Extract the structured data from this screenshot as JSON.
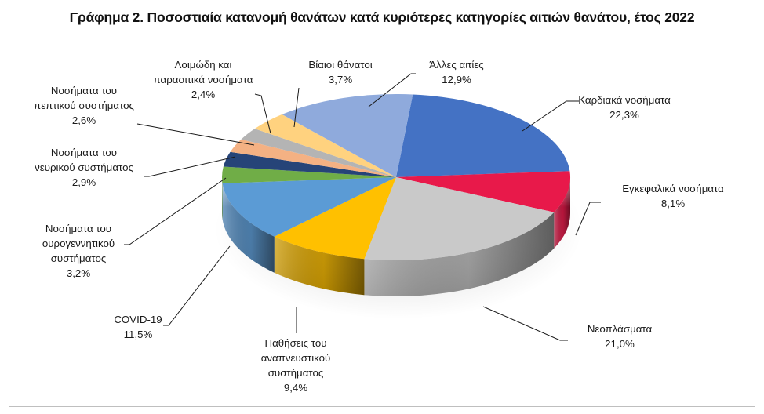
{
  "title": "Γράφημα 2. Ποσοστιαία κατανομή θανάτων κατά κυριότερες κατηγορίες αιτιών θανάτου, έτος 2022",
  "chart_data": {
    "type": "pie",
    "style": "3d-exploded-none",
    "title": "Γράφημα 2. Ποσοστιαία κατανομή θανάτων κατά κυριότερες κατηγορίες αιτιών θανάτου, έτος 2022",
    "unit": "%",
    "legend": "none (data labels with leader lines)",
    "slices": [
      {
        "label": "Καρδιακά νοσήματα",
        "value": 22.3,
        "display": "22,3%",
        "color": "#4472c4"
      },
      {
        "label": "Εγκεφαλικά νοσήματα",
        "value": 8.1,
        "display": "8,1%",
        "color": "#e8194a"
      },
      {
        "label": "Νεοπλάσματα",
        "value": 21.0,
        "display": "21,0%",
        "color": "#c9c9c9"
      },
      {
        "label": "Παθήσεις του αναπνευστικού συστήματος",
        "value": 9.4,
        "display": "9,4%",
        "color": "#ffc000"
      },
      {
        "label": "COVID-19",
        "value": 11.5,
        "display": "11,5%",
        "color": "#5b9bd5"
      },
      {
        "label": "Νοσήματα του ουρογεννητικού συστήματος",
        "value": 3.2,
        "display": "3,2%",
        "color": "#70ad47"
      },
      {
        "label": "Νοσήματα του νευρικού συστήματος",
        "value": 2.9,
        "display": "2,9%",
        "color": "#264478"
      },
      {
        "label": "Νοσήματα του πεπτικού συστήματος",
        "value": 2.6,
        "display": "2,6%",
        "color": "#f4b183"
      },
      {
        "label": "Λοιμώδη και παρασιτικά νοσήματα",
        "value": 2.4,
        "display": "2,4%",
        "color": "#b4b4b4"
      },
      {
        "label": "Βίαιοι θάνατοι",
        "value": 3.7,
        "display": "3,7%",
        "color": "#ffd27f"
      },
      {
        "label": "Άλλες αιτίες",
        "value": 12.9,
        "display": "12,9%",
        "color": "#8faadc"
      }
    ]
  },
  "labels": [
    {
      "key": "kardiaka",
      "lines": [
        "Καρδιακά νοσήματα",
        "22,3%"
      ]
    },
    {
      "key": "egkefalika",
      "lines": [
        "Εγκεφαλικά νοσήματα",
        "8,1%"
      ]
    },
    {
      "key": "neoplasmata",
      "lines": [
        "Νεοπλάσματα",
        "21,0%"
      ]
    },
    {
      "key": "anapneustiko",
      "lines": [
        "Παθήσεις του",
        "αναπνευστικού",
        "συστήματος",
        "9,4%"
      ]
    },
    {
      "key": "covid",
      "lines": [
        "COVID-19",
        "11,5%"
      ]
    },
    {
      "key": "ourogennitiko",
      "lines": [
        "Νοσήματα του",
        "ουρογεννητικού",
        "συστήματος",
        "3,2%"
      ]
    },
    {
      "key": "neuriko",
      "lines": [
        "Νοσήματα του",
        "νευρικού συστήματος",
        "2,9%"
      ]
    },
    {
      "key": "peptiko",
      "lines": [
        "Νοσήματα του",
        "πεπτικού συστήματος",
        "2,6%"
      ]
    },
    {
      "key": "loimodi",
      "lines": [
        "Λοιμώδη και",
        "παρασιτικά νοσήματα",
        "2,4%"
      ]
    },
    {
      "key": "biaioi",
      "lines": [
        "Βίαιοι θάνατοι",
        "3,7%"
      ]
    },
    {
      "key": "alles",
      "lines": [
        "Άλλες αιτίες",
        "12,9%"
      ]
    }
  ]
}
